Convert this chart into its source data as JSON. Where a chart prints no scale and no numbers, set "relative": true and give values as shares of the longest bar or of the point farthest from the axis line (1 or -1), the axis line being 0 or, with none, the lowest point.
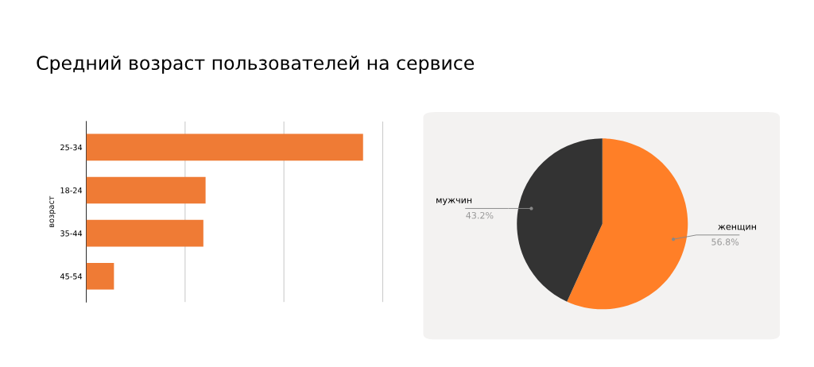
{
  "chart_data": [
    {
      "type": "bar",
      "orientation": "horizontal",
      "relative": true,
      "title": "Средний возраст пользователей на сервисе",
      "ylabel": "возраст",
      "categories": [
        "25-34",
        "18-24",
        "35-44",
        "45-54"
      ],
      "values": [
        1,
        0.431,
        0.423,
        0.1
      ],
      "color": "#ef7b35",
      "ref_lines": [
        {
          "axis": "x",
          "value": 0.357,
          "color": "#cccccc"
        },
        {
          "axis": "x",
          "value": 0.714,
          "color": "#cccccc"
        },
        {
          "axis": "x",
          "value": 1.071,
          "color": "#cccccc"
        }
      ]
    },
    {
      "type": "pie",
      "categories": [
        "женщин",
        "мужчин"
      ],
      "values": [
        56.8,
        43.2
      ],
      "colors": [
        "#ff7f27",
        "#333333"
      ],
      "value_labels": [
        "56.8%",
        "43.2%"
      ]
    }
  ]
}
